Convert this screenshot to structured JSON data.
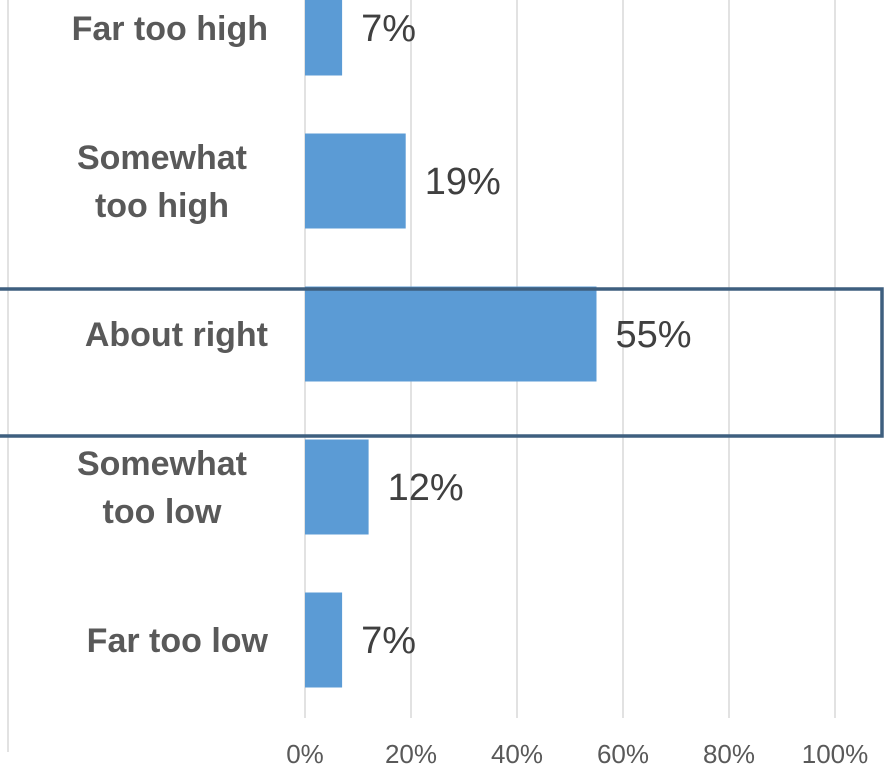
{
  "chart_data": {
    "type": "bar",
    "orientation": "horizontal",
    "categories": [
      [
        "Far too high"
      ],
      [
        "Somewhat",
        "too high"
      ],
      [
        "About right"
      ],
      [
        "Somewhat",
        "too low"
      ],
      [
        "Far too low"
      ]
    ],
    "values": [
      7,
      19,
      55,
      12,
      7
    ],
    "value_labels": [
      "7%",
      "19%",
      "55%",
      "12%",
      "7%"
    ],
    "x_ticks": [
      "0%",
      "20%",
      "40%",
      "60%",
      "80%",
      "100%"
    ],
    "xlim": [
      0,
      100
    ],
    "grid": true,
    "highlighted_category": "About right",
    "colors": {
      "bar": "#5b9bd5",
      "grid": "#d9d9d9",
      "highlight_box": "#3e5f7f",
      "category_text": "#595959",
      "value_text": "#404040"
    }
  }
}
